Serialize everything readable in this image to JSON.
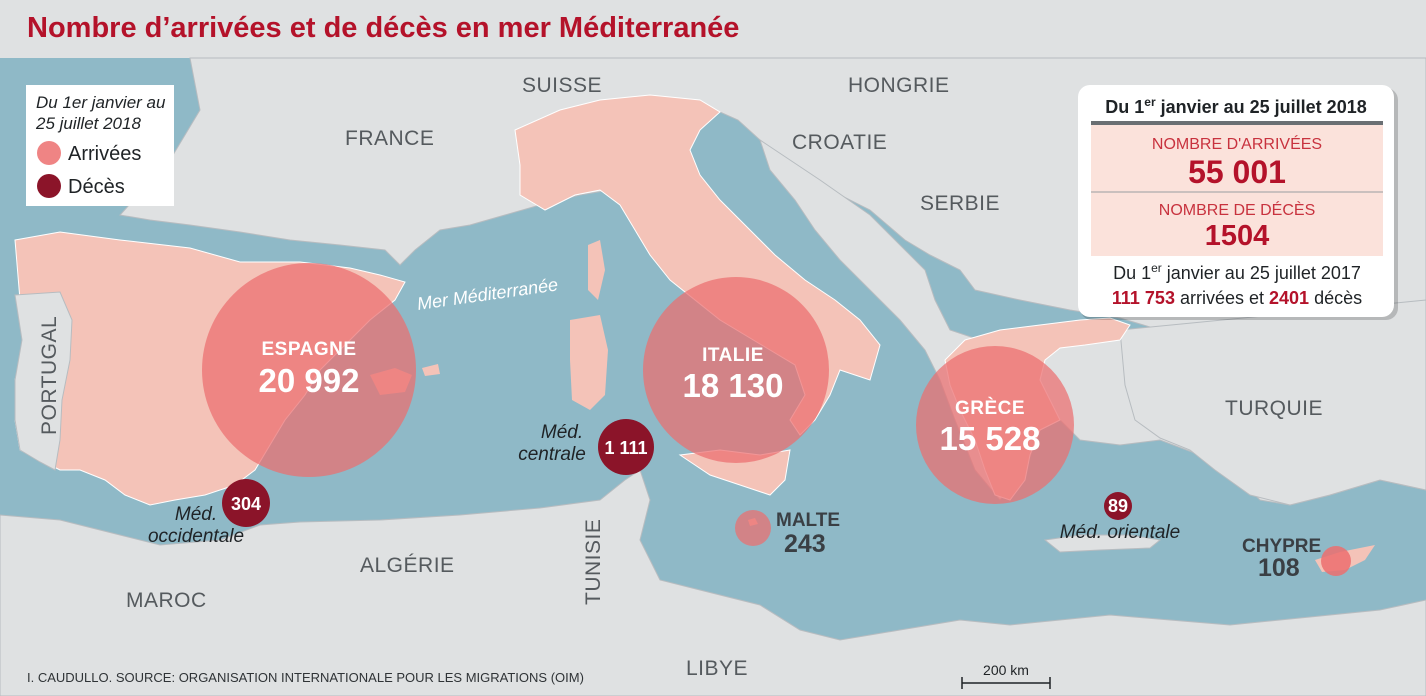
{
  "title": "Nombre d’arrivées et de décès en mer Méditerranée",
  "legend": {
    "period_line1": "Du 1er janvier au",
    "period_line2": "25 juillet 2018",
    "arrivals_label": "Arrivées",
    "deaths_label": "Décès"
  },
  "colors": {
    "sea": "#8fb9c7",
    "land": "#dfe1e2",
    "highlight_land": "#f4c3b8",
    "arrival_circle": "#ec6e6f",
    "death_circle": "#8b1429",
    "accent": "#b4122a"
  },
  "countries": {
    "france": "FRANCE",
    "suisse": "SUISSE",
    "hongrie": "HONGRIE",
    "croatie": "CROATIE",
    "serbie": "SERBIE",
    "portugal": "PORTUGAL",
    "turquie": "TURQUIE",
    "algerie": "ALGÉRIE",
    "maroc": "MAROC",
    "tunisie": "TUNISIE",
    "libye": "LIBYE"
  },
  "sea_label": "Mer Méditerranée",
  "arrivals": [
    {
      "name": "ESPAGNE",
      "value": "20 992",
      "count": 20992
    },
    {
      "name": "ITALIE",
      "value": "18 130",
      "count": 18130
    },
    {
      "name": "GRÈCE",
      "value": "15 528",
      "count": 15528
    },
    {
      "name": "MALTE",
      "value": "243",
      "count": 243
    },
    {
      "name": "CHYPRE",
      "value": "108",
      "count": 108
    }
  ],
  "deaths": [
    {
      "route_line1": "Méd.",
      "route_line2": "occidentale",
      "value": "304",
      "count": 304
    },
    {
      "route_line1": "Méd.",
      "route_line2": "centrale",
      "value": "1 111",
      "count": 1111
    },
    {
      "route_line1": "Méd. orientale",
      "route_line2": "",
      "value": "89",
      "count": 89
    }
  ],
  "summary": {
    "heading_pre": "Du 1",
    "heading_sup": "er",
    "heading_post": " janvier au 25 juillet 2018",
    "arrivals_label": "NOMBRE D'ARRIVÉES",
    "arrivals_value": "55 001",
    "deaths_label": "NOMBRE DE DÉCÈS",
    "deaths_value": "1504",
    "compare_pre": "Du 1",
    "compare_sup": "er",
    "compare_post": " janvier au 25 juillet 2017",
    "compare_arrivals": "111 753",
    "compare_arrivals_word": " arrivées et ",
    "compare_deaths": "2401",
    "compare_deaths_word": " décès"
  },
  "scale_label": "200 km",
  "source": "I. CAUDULLO. SOURCE: ORGANISATION INTERNATIONALE POUR LES MIGRATIONS (OIM)"
}
